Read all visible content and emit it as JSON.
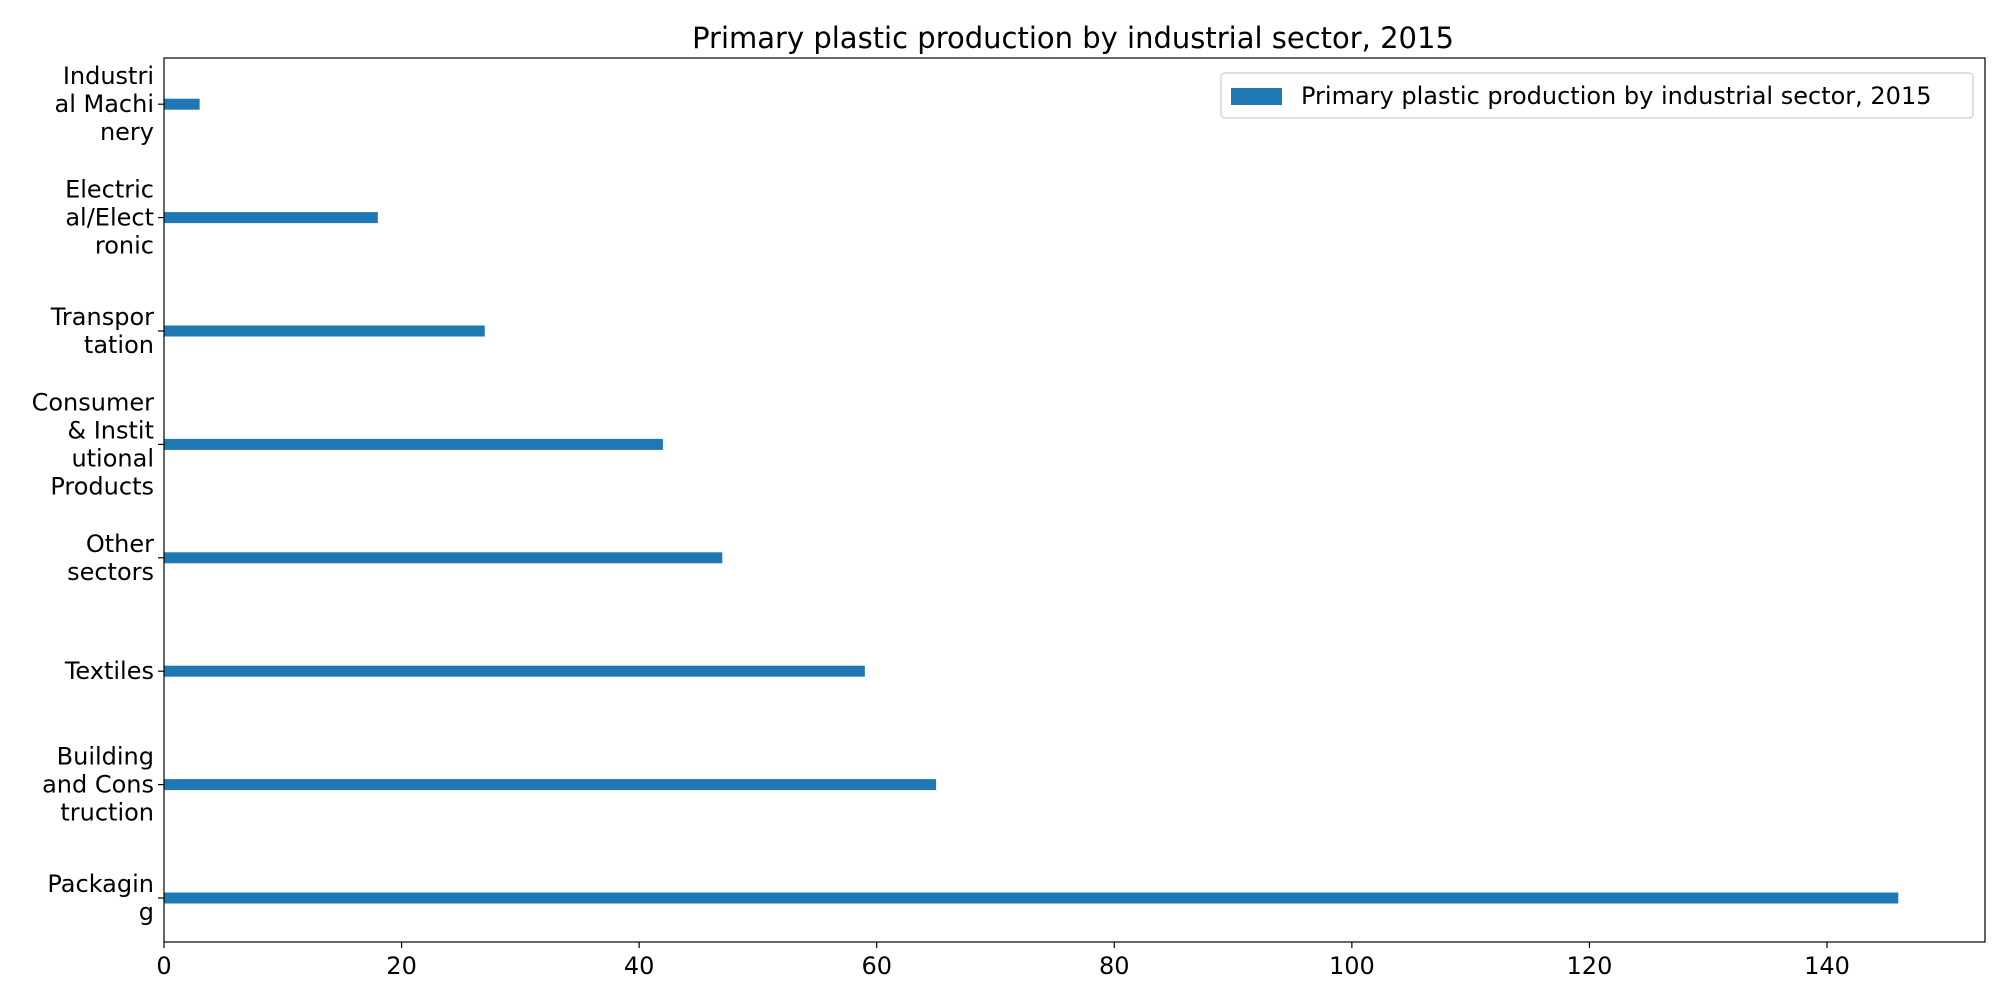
{
  "chart_data": {
    "type": "bar",
    "orientation": "horizontal",
    "title": "Primary plastic production by industrial sector, 2015",
    "xlabel": "",
    "ylabel": "",
    "categories": [
      "Packaging",
      "Building and Construction",
      "Textiles",
      "Other sectors",
      "Consumer & Institutional Products",
      "Transportation",
      "Electrical/Electronic",
      "Industrial Machinery"
    ],
    "category_label_lines": [
      [
        "Packagin",
        "g"
      ],
      [
        "Building",
        "and Cons",
        "truction"
      ],
      [
        "Textiles"
      ],
      [
        "Other",
        "sectors"
      ],
      [
        "Consumer",
        "& Instit",
        "utional",
        "Products"
      ],
      [
        "Transpor",
        "tation"
      ],
      [
        "Electric",
        "al/Elect",
        "ronic"
      ],
      [
        "Industri",
        "al Machi",
        "nery"
      ]
    ],
    "series": [
      {
        "name": "Primary plastic production by industrial sector, 2015",
        "values": [
          146,
          65,
          59,
          47,
          42,
          27,
          18,
          3
        ]
      }
    ],
    "xlim": [
      0,
      153.3
    ],
    "xticks": [
      0,
      20,
      40,
      60,
      80,
      100,
      120,
      140
    ],
    "grid": false,
    "legend": "top-right",
    "colors": {
      "bar": "#1f77b4"
    }
  }
}
